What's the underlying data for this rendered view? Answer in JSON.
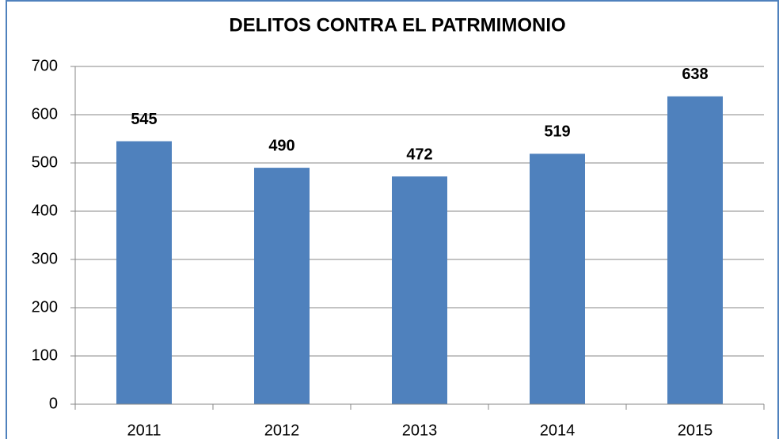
{
  "chart_data": {
    "type": "bar",
    "title": "DELITOS CONTRA EL PATRMIMONIO",
    "categories": [
      "2011",
      "2012",
      "2013",
      "2014",
      "2015"
    ],
    "values": [
      545,
      490,
      472,
      519,
      638
    ],
    "color": "#4f81bd",
    "ylim": [
      0,
      700
    ],
    "yticks": [
      0,
      100,
      200,
      300,
      400,
      500,
      600,
      700
    ],
    "grid": true
  }
}
